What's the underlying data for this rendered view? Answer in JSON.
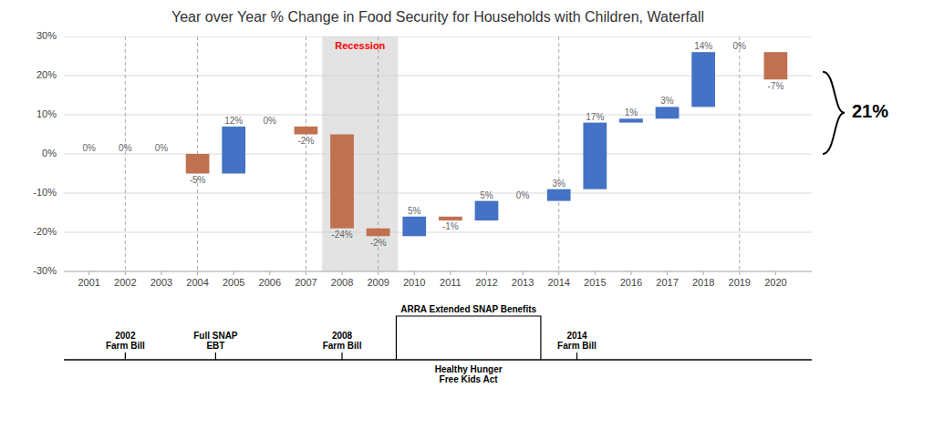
{
  "chart_data": {
    "type": "waterfall",
    "title": "Year over Year % Change in Food Security for Households with Children, Waterfall",
    "x": [
      2001,
      2002,
      2003,
      2004,
      2005,
      2006,
      2007,
      2008,
      2009,
      2010,
      2011,
      2012,
      2013,
      2014,
      2015,
      2016,
      2017,
      2018,
      2019,
      2020
    ],
    "values": [
      0,
      0,
      0,
      -5,
      12,
      0,
      -2,
      -24,
      -2,
      5,
      -1,
      5,
      0,
      3,
      17,
      1,
      3,
      14,
      0,
      -7
    ],
    "value_labels": [
      "0%",
      "0%",
      "0%",
      "-5%",
      "12%",
      "0%",
      "-2%",
      "-24%",
      "-2%",
      "5%",
      "-1%",
      "5%",
      "0%",
      "3%",
      "17%",
      "1%",
      "3%",
      "14%",
      "0%",
      "-7%"
    ],
    "colors": [
      "#4472C4",
      "#4472C4",
      "#4472C4",
      "#C0714F",
      "#4472C4",
      "#4472C4",
      "#C0714F",
      "#C0714F",
      "#C0714F",
      "#4472C4",
      "#C0714F",
      "#4472C4",
      "#4472C4",
      "#4472C4",
      "#4472C4",
      "#4472C4",
      "#4472C4",
      "#4472C4",
      "#4472C4",
      "#C0714F"
    ],
    "data_labels": true,
    "grid": true,
    "xlim": [
      2000.3,
      2021.0
    ],
    "xticks": [
      2001,
      2002,
      2003,
      2004,
      2005,
      2006,
      2007,
      2008,
      2009,
      2010,
      2011,
      2012,
      2013,
      2014,
      2015,
      2016,
      2017,
      2018,
      2019,
      2020
    ],
    "ylim": [
      -30,
      30
    ],
    "yticks": [
      {
        "value": -30,
        "label": "-30%"
      },
      {
        "value": -20,
        "label": "-20%"
      },
      {
        "value": -10,
        "label": "-10%"
      },
      {
        "value": 0,
        "label": "0%"
      },
      {
        "value": 10,
        "label": "10%"
      },
      {
        "value": 20,
        "label": "20%"
      },
      {
        "value": 30,
        "label": "30%"
      }
    ],
    "annotations": [
      {
        "kind": "span",
        "x_start": 2007.45,
        "x_end": 2009.55,
        "text": "Recession",
        "color": "red"
      },
      {
        "kind": "vline",
        "x": 2002
      },
      {
        "kind": "vline",
        "x": 2004
      },
      {
        "kind": "vline",
        "x": 2007
      },
      {
        "kind": "vline",
        "x": 2009
      },
      {
        "kind": "vline",
        "x": 2014
      },
      {
        "kind": "vline",
        "x": 2019
      },
      {
        "kind": "bracket",
        "y_start": 0,
        "y_end": 21,
        "text": "21%"
      },
      {
        "kind": "event",
        "x": 2002,
        "text": "2002\nFarm Bill"
      },
      {
        "kind": "event",
        "x": 2004.5,
        "text": "Full SNAP\nEBT"
      },
      {
        "kind": "event",
        "x": 2008,
        "text": "2008\nFarm Bill"
      },
      {
        "kind": "event_range",
        "x_start": 2009.5,
        "x_end": 2013.5,
        "text": "ARRA Extended SNAP Benefits"
      },
      {
        "kind": "event",
        "x": 2014.5,
        "text": "2014\nFarm Bill"
      },
      {
        "kind": "event_below",
        "x": 2011.5,
        "text": "Healthy Hunger\nFree Kids Act"
      }
    ]
  }
}
